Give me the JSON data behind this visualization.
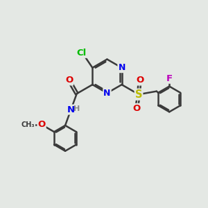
{
  "background_color": "#e4e8e4",
  "bond_color": "#3a3a3a",
  "bond_width": 1.8,
  "atom_colors": {
    "N": "#0000ee",
    "O": "#dd0000",
    "S": "#bbbb00",
    "Cl": "#00bb00",
    "F": "#bb00bb",
    "C": "#3a3a3a",
    "H": "#888888"
  },
  "font_size": 8.5,
  "fig_width": 3.0,
  "fig_height": 3.0,
  "dpi": 100
}
